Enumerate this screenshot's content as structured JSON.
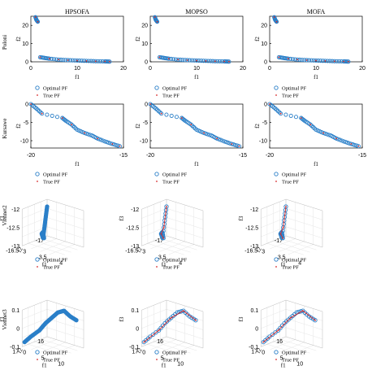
{
  "colors": {
    "optimal": "#2a7fc8",
    "true": "#d62728",
    "axis": "#000000"
  },
  "column_titles": [
    "HPSOFA",
    "MOPSO",
    "MOFA"
  ],
  "row_labels": [
    "Poloni",
    "Kursawe",
    "Viennet2",
    "Viennet3"
  ],
  "legend": {
    "optimal": "Optimal PF",
    "true": "True PF"
  },
  "chart_data": [
    {
      "type": "scatter",
      "row": "Poloni",
      "xlabel": "f1",
      "ylabel": "f2",
      "xlim": [
        0,
        20
      ],
      "ylim": [
        0,
        25
      ],
      "xticks": [
        "0",
        "10",
        "20"
      ],
      "yticks": [
        "0",
        "10",
        "20"
      ],
      "series": [
        {
          "name": "Optimal PF",
          "x": [
            1.0,
            1.2,
            1.5,
            2,
            3,
            4,
            6,
            8,
            10,
            12,
            14,
            16,
            17
          ],
          "y": [
            24.5,
            23,
            22,
            2.5,
            2.1,
            1.7,
            1.2,
            0.9,
            0.7,
            0.5,
            0.3,
            0.2,
            0.1
          ]
        },
        {
          "name": "True PF",
          "x": [
            1.0,
            1.5,
            2,
            4,
            6,
            8,
            10,
            12,
            14,
            16,
            17
          ],
          "y": [
            24.5,
            22,
            2.5,
            1.7,
            1.2,
            0.9,
            0.7,
            0.5,
            0.3,
            0.2,
            0.1
          ]
        }
      ]
    },
    {
      "type": "scatter",
      "row": "Kursawe",
      "xlabel": "f1",
      "ylabel": "f2",
      "xlim": [
        -20,
        -15
      ],
      "ylim": [
        -12,
        0
      ],
      "xticks": [
        "-20",
        "-15"
      ],
      "yticks": [
        "0",
        "-5",
        "-10"
      ],
      "series": [
        {
          "name": "Optimal PF",
          "x": [
            -20,
            -19.7,
            -19.4,
            -18.3,
            -18.1,
            -17.8,
            -17.5,
            -17.1,
            -16.7,
            -16.4,
            -16.0,
            -15.6,
            -15.2
          ],
          "y": [
            0,
            -1.2,
            -2.6,
            -3.8,
            -4.6,
            -5.6,
            -7.0,
            -7.9,
            -8.6,
            -9.4,
            -10.2,
            -10.9,
            -11.5
          ]
        },
        {
          "name": "True PF",
          "x": [
            -20,
            -19.4,
            -18.3,
            -17.8,
            -17.1,
            -16.4,
            -15.6,
            -15.2
          ],
          "y": [
            0,
            -2.6,
            -3.8,
            -5.6,
            -7.9,
            -9.4,
            -10.9,
            -11.5
          ]
        }
      ]
    },
    {
      "type": "scatter",
      "row": "Viennet2",
      "xlabel": "f1",
      "ylabel": "f2",
      "zlabel": "f3",
      "xlim": [
        3,
        4
      ],
      "ylim": [
        -17,
        -16.5
      ],
      "zlim": [
        -13,
        -12
      ],
      "xticks": [
        "3",
        "3.5",
        "4"
      ],
      "yticks": [
        "-17",
        "-16.5"
      ],
      "zticks": [
        "-12",
        "-12.5",
        "-13"
      ],
      "series": [
        {
          "name": "Optimal PF",
          "x": [
            3.0,
            3.1,
            3.2,
            3.3,
            3.4,
            3.5,
            3.6
          ],
          "y": [
            -17,
            -16.9,
            -16.8,
            -16.7,
            -16.6,
            -16.55,
            -16.5
          ],
          "z": [
            -12.2,
            -12.4,
            -12.6,
            -12.8,
            -12.6,
            -12.5,
            -12.6
          ]
        },
        {
          "name": "True PF",
          "x": [
            3.0,
            3.2,
            3.4,
            3.6
          ],
          "y": [
            -17,
            -16.8,
            -16.6,
            -16.5
          ],
          "z": [
            -12.2,
            -12.6,
            -12.6,
            -12.6
          ]
        }
      ]
    },
    {
      "type": "scatter",
      "row": "Viennet3",
      "xlabel": "f1",
      "ylabel": "f2",
      "zlabel": "f3",
      "xlim": [
        0,
        10
      ],
      "ylim": [
        16,
        17
      ],
      "zlim": [
        -0.1,
        0.1
      ],
      "xticks": [
        "0",
        "5",
        "10"
      ],
      "yticks": [
        "17",
        "16"
      ],
      "zticks": [
        "0.1",
        "0",
        "-0.1"
      ],
      "series": [
        {
          "name": "Optimal PF",
          "x": [
            0,
            1,
            2,
            3,
            4,
            5,
            6,
            7,
            8
          ],
          "y": [
            16.9,
            16.8,
            16.6,
            16.5,
            16.4,
            16.3,
            16.2,
            16.1,
            16.0
          ],
          "z": [
            -0.08,
            -0.05,
            -0.02,
            0.02,
            0.05,
            0.08,
            0.09,
            0.06,
            0.04
          ]
        },
        {
          "name": "True PF",
          "x": [
            0,
            2,
            4,
            6,
            8
          ],
          "y": [
            16.9,
            16.6,
            16.4,
            16.2,
            16.0
          ],
          "z": [
            -0.08,
            -0.02,
            0.05,
            0.09,
            0.04
          ]
        }
      ]
    }
  ],
  "legend_items": [
    "Optimal PF",
    "True PF"
  ]
}
